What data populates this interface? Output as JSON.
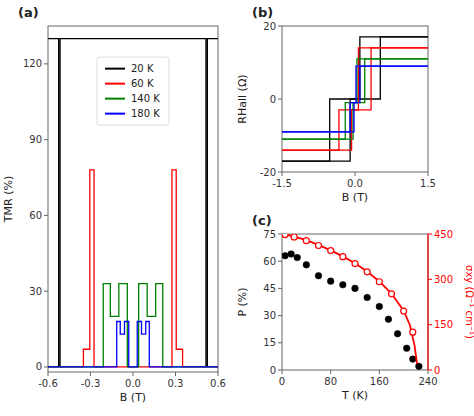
{
  "chart_data": [
    {
      "type": "line",
      "title": "(a)",
      "xlabel": "B (T)",
      "ylabel": "TMR (%)",
      "xlim": [
        -0.6,
        0.6
      ],
      "ylim": [
        -2,
        135
      ],
      "xticks": [
        -0.6,
        -0.3,
        {
          "value": 0,
          "label": "0.0"
        },
        0.3,
        0.6
      ],
      "yticks": [
        0,
        30,
        60,
        90,
        120
      ],
      "grid": false,
      "legend": "upper center",
      "series": [
        {
          "name": "20 K",
          "color": "black",
          "x": [
            -0.6,
            -0.525,
            -0.525,
            -0.515,
            -0.515,
            0.515,
            0.515,
            0.525,
            0.525,
            0.6
          ],
          "values": [
            130,
            130,
            0.5,
            0.5,
            130,
            130,
            0.5,
            0.5,
            130,
            130
          ]
        },
        {
          "name": "60 K",
          "color": "red",
          "x": [
            -0.6,
            -0.35,
            -0.35,
            -0.305,
            -0.305,
            -0.275,
            -0.275,
            0.275,
            0.275,
            0.305,
            0.305,
            0.35,
            0.35,
            0.6
          ],
          "values": [
            0,
            0,
            7,
            7,
            78,
            78,
            0,
            0,
            78,
            78,
            7,
            7,
            0,
            0
          ]
        },
        {
          "name": "140 K",
          "color": "green",
          "x": [
            -0.6,
            -0.21,
            -0.21,
            -0.16,
            -0.16,
            -0.1,
            -0.1,
            -0.04,
            -0.04,
            0.04,
            0.04,
            0.1,
            0.1,
            0.16,
            0.16,
            0.21,
            0.21,
            0.6
          ],
          "values": [
            0,
            0,
            33,
            33,
            20,
            20,
            33,
            33,
            0,
            0,
            33,
            33,
            20,
            20,
            33,
            33,
            0,
            0
          ]
        },
        {
          "name": "180 K",
          "color": "blue",
          "x": [
            -0.6,
            -0.115,
            -0.115,
            -0.09,
            -0.09,
            -0.06,
            -0.06,
            -0.03,
            -0.03,
            0.03,
            0.03,
            0.06,
            0.06,
            0.09,
            0.09,
            0.115,
            0.115,
            0.6
          ],
          "values": [
            0,
            0,
            18,
            18,
            13,
            13,
            18,
            18,
            0,
            0,
            18,
            18,
            13,
            13,
            18,
            18,
            0,
            0
          ]
        }
      ]
    },
    {
      "type": "line",
      "title": "(b)",
      "xlabel": "B (T)",
      "ylabel": "RHall (Ω)",
      "xlim": [
        -1.5,
        1.5
      ],
      "ylim": [
        -20,
        20
      ],
      "xticks": [
        -1.5,
        {
          "value": 0,
          "label": "0.0"
        },
        1.5
      ],
      "yticks": [
        -20,
        0,
        20
      ],
      "grid": false,
      "series": [
        {
          "color": "black",
          "x": [
            -1.5,
            -0.52,
            -0.52,
            0.1,
            0.1,
            1.5
          ],
          "values": [
            -17,
            -17,
            0,
            0,
            17,
            17
          ]
        },
        {
          "color": "black",
          "x": [
            1.5,
            0.52,
            0.52,
            -0.1,
            -0.1,
            -1.5
          ],
          "values": [
            17,
            17,
            0,
            0,
            -17,
            -17
          ]
        },
        {
          "color": "red",
          "x": [
            -1.5,
            -0.33,
            -0.33,
            0.07,
            0.07,
            1.5
          ],
          "values": [
            -14,
            -14,
            -3,
            -3,
            14,
            14
          ]
        },
        {
          "color": "red",
          "x": [
            1.5,
            0.33,
            0.33,
            -0.07,
            -0.07,
            -1.5
          ],
          "values": [
            14,
            14,
            -3,
            -3,
            -14,
            -14
          ]
        },
        {
          "color": "green",
          "x": [
            -1.5,
            -0.2,
            -0.2,
            0.04,
            0.04,
            1.5
          ],
          "values": [
            -11,
            -11,
            -1,
            -1,
            11,
            11
          ]
        },
        {
          "color": "green",
          "x": [
            1.5,
            0.2,
            0.2,
            -0.04,
            -0.04,
            -1.5
          ],
          "values": [
            11,
            11,
            -1,
            -1,
            -11,
            -11
          ]
        },
        {
          "color": "blue",
          "x": [
            -1.5,
            -0.1,
            -0.1,
            0.02,
            0.02,
            1.5
          ],
          "values": [
            -9,
            -9,
            -1,
            -1,
            9,
            9
          ]
        },
        {
          "color": "blue",
          "x": [
            1.5,
            0.1,
            0.1,
            -0.02,
            -0.02,
            -1.5
          ],
          "values": [
            9,
            9,
            -1,
            -1,
            -9,
            -9
          ]
        }
      ]
    },
    {
      "type": "scatter",
      "title": "(c)",
      "xlabel": "T (K)",
      "ylabel": "P (%)",
      "y2label": "σxy (Ω⁻¹ cm⁻¹)",
      "xlim": [
        0,
        240
      ],
      "ylim": [
        0,
        75
      ],
      "y2lim": [
        0,
        450
      ],
      "xticks": [
        0,
        80,
        160,
        240
      ],
      "yticks": [
        0,
        15,
        30,
        45,
        60,
        75
      ],
      "y2ticks": [
        0,
        150,
        300,
        450
      ],
      "grid": false,
      "series": [
        {
          "type": "scatter",
          "marker": "filled circle",
          "color": "black",
          "x": [
            5,
            15,
            25,
            40,
            60,
            80,
            100,
            120,
            140,
            160,
            175,
            190,
            205,
            215,
            225
          ],
          "values": [
            63,
            64,
            62,
            58,
            52,
            49,
            47,
            45,
            40,
            35,
            28,
            20,
            12,
            6,
            2
          ]
        },
        {
          "type": "line",
          "color": "red",
          "axis": "y2",
          "x": [
            0,
            5,
            20,
            40,
            60,
            80,
            100,
            120,
            140,
            160,
            180,
            200,
            210,
            218,
            222
          ],
          "values": [
            450,
            449,
            441,
            430,
            414,
            396,
            376,
            353,
            326,
            293,
            253,
            196,
            150,
            80,
            20
          ]
        },
        {
          "type": "scatter",
          "marker": "open circle",
          "color": "red",
          "axis": "y2",
          "x": [
            5,
            20,
            40,
            60,
            80,
            100,
            120,
            140,
            160,
            180,
            200,
            215
          ],
          "values": [
            448,
            440,
            428,
            412,
            395,
            375,
            352,
            325,
            292,
            252,
            195,
            125
          ]
        }
      ]
    }
  ]
}
